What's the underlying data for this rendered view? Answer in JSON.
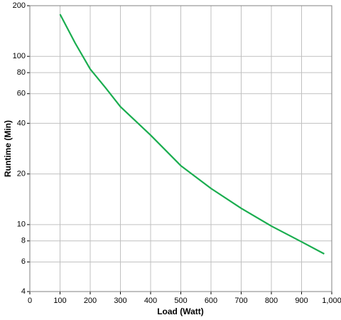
{
  "chart_data": {
    "type": "line",
    "xlabel": "Load (Watt)",
    "ylabel": "Runtime (Min)",
    "x": [
      100,
      150,
      200,
      250,
      300,
      400,
      500,
      600,
      700,
      800,
      900,
      975
    ],
    "series": [
      {
        "name": "Runtime",
        "color": "#1aad4f",
        "values": [
          178,
          120,
          84,
          65.3,
          50.2,
          34,
          22.4,
          16.4,
          12.5,
          9.8,
          7.9,
          6.7
        ]
      }
    ],
    "xlim": [
      0,
      1000
    ],
    "xticks": [
      0,
      100,
      200,
      300,
      400,
      500,
      600,
      700,
      800,
      900,
      {
        "value": 1000,
        "label": "1,000"
      }
    ],
    "ylim": [
      4,
      200
    ],
    "yticks": [
      4,
      6,
      8,
      10,
      20,
      40,
      60,
      80,
      100,
      200
    ],
    "ylog": true,
    "grid": true
  }
}
